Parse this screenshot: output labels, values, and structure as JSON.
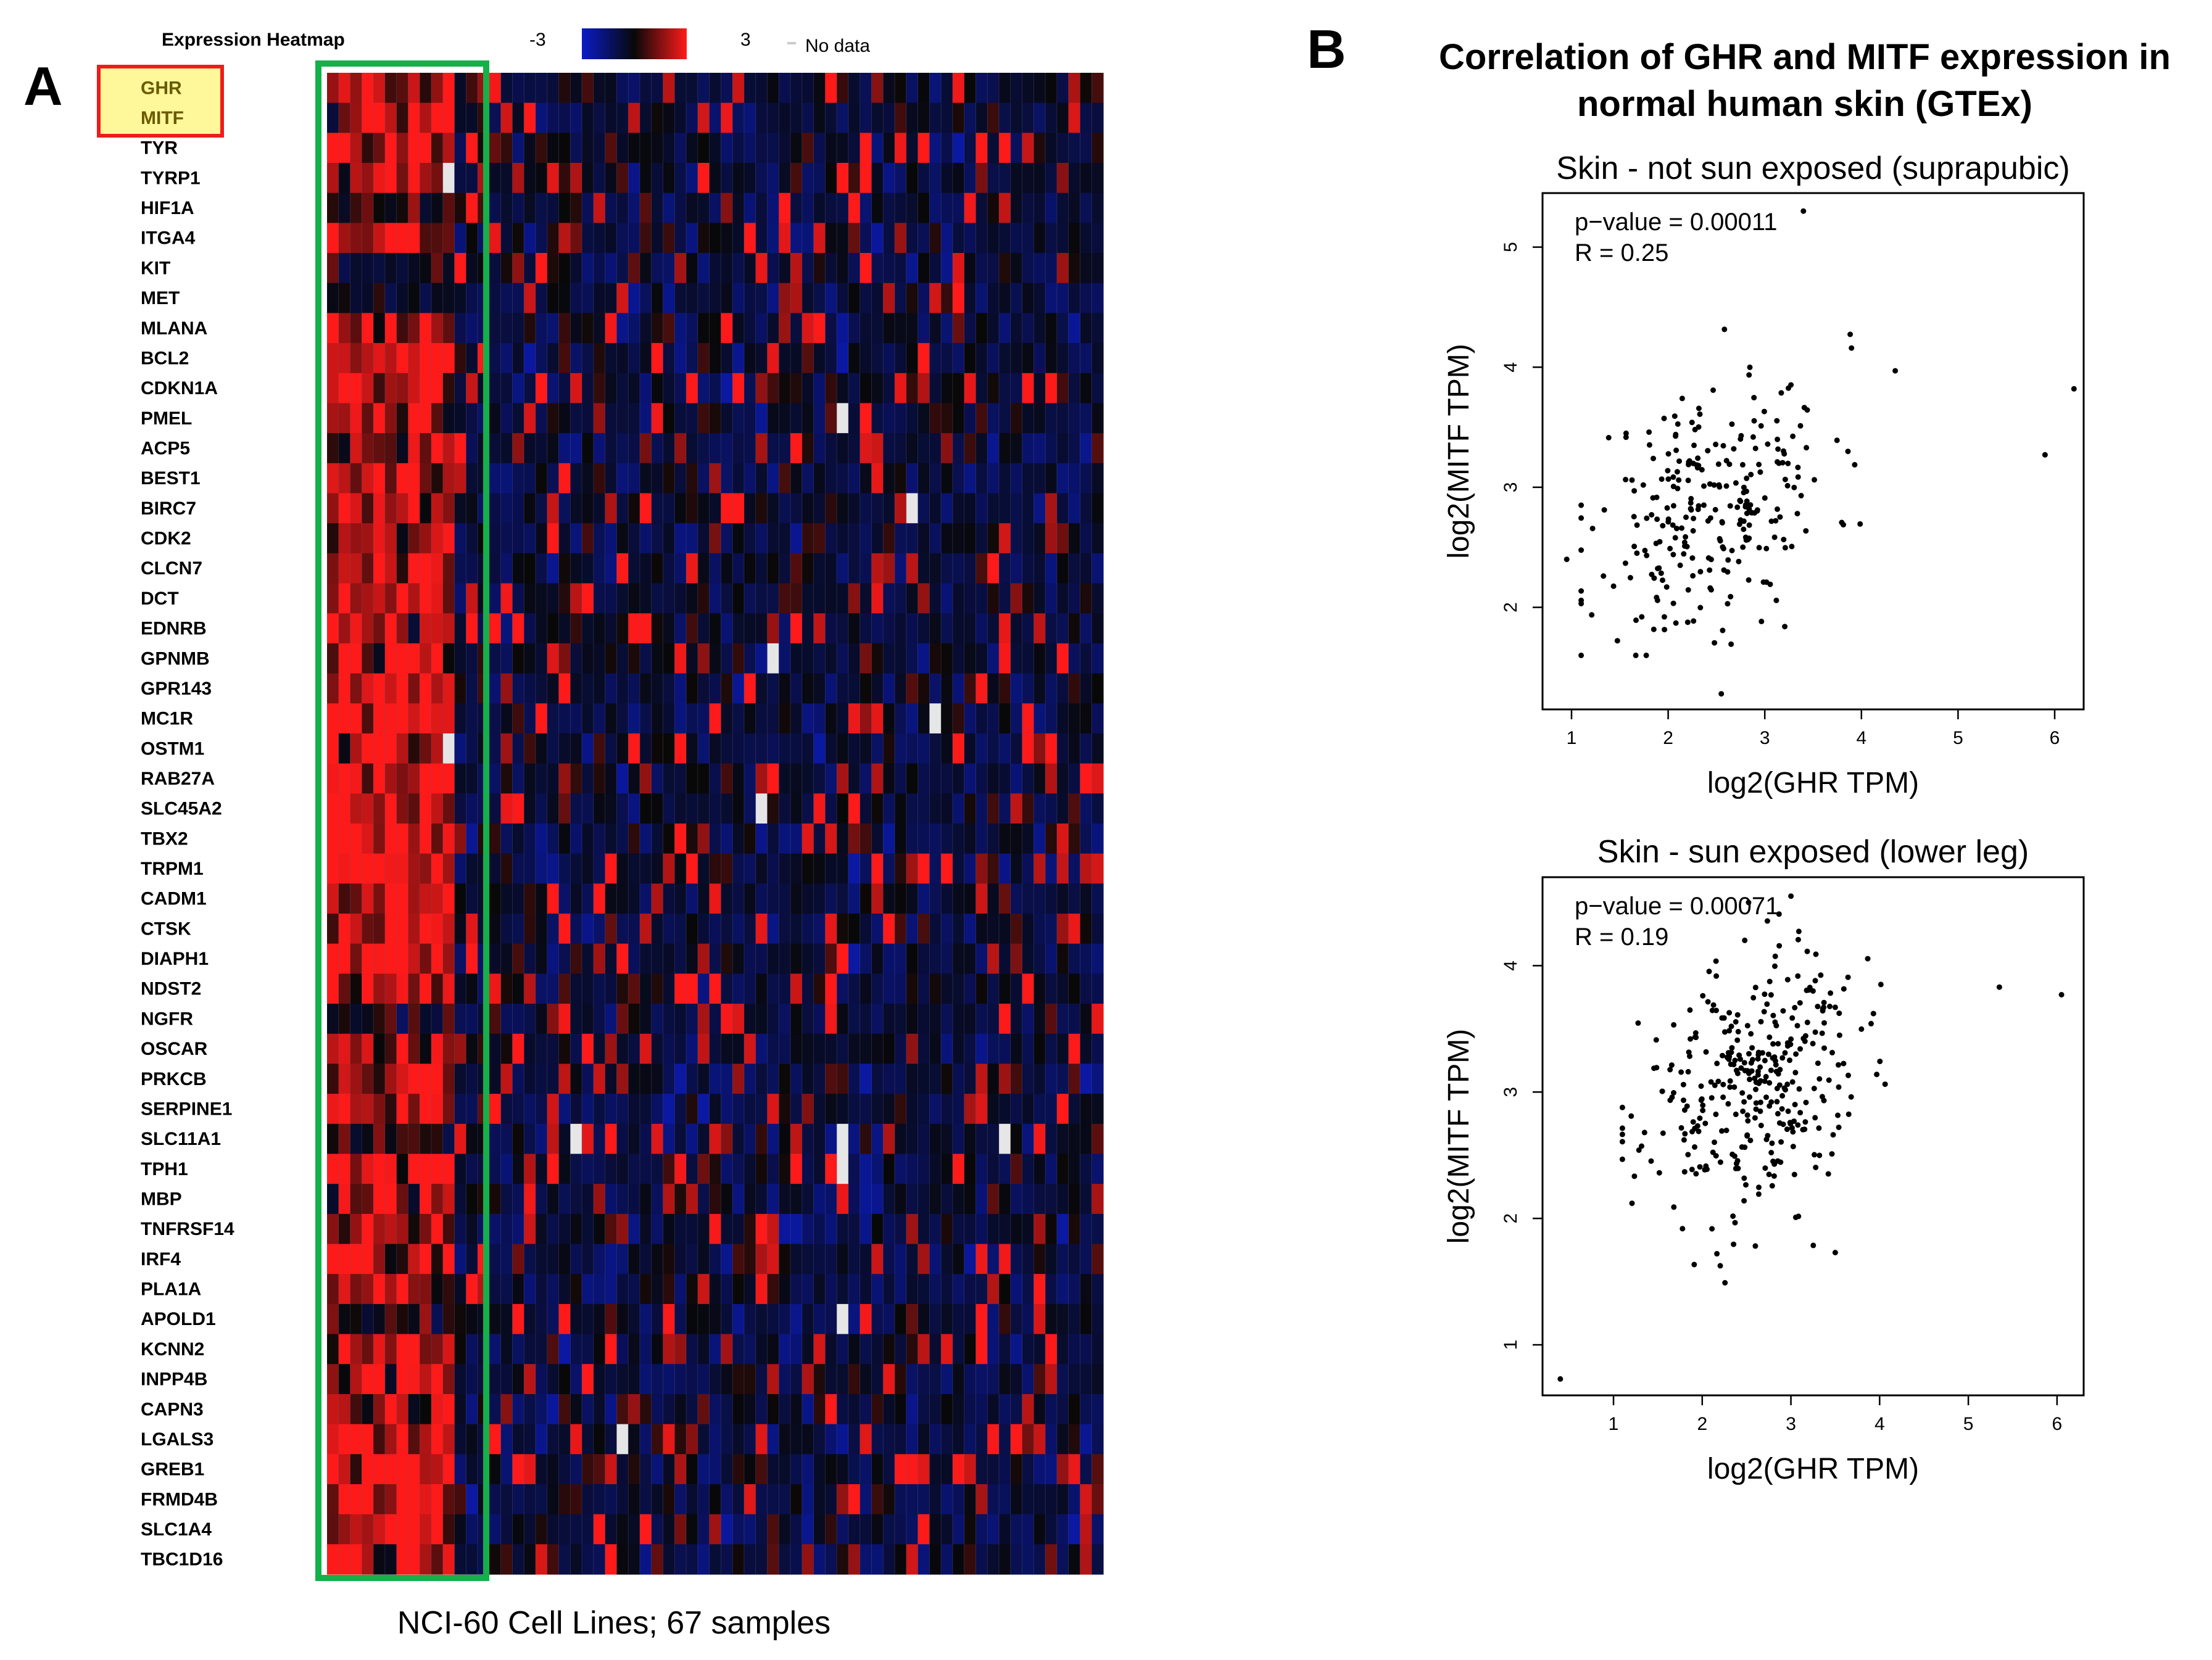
{
  "panels": {
    "a_letter": "A",
    "b_letter": "B"
  },
  "colors": {
    "low": "#0a1cc8",
    "mid": "#080808",
    "high": "#ff1a1a",
    "nodata": "#e6e6e6",
    "highlight_fill": "#fff89a",
    "highlight_box": "#ee1c1c",
    "melanoma_box": "#14b04a"
  },
  "chart_data": [
    {
      "type": "heatmap",
      "title": "Expression Heatmap",
      "legend": {
        "min_label": "-3",
        "max_label": "3",
        "nodata_label": "No data",
        "range": [
          -3,
          3
        ]
      },
      "genes": [
        "GHR",
        "MITF",
        "TYR",
        "TYRP1",
        "HIF1A",
        "ITGA4",
        "KIT",
        "MET",
        "MLANA",
        "BCL2",
        "CDKN1A",
        "PMEL",
        "ACP5",
        "BEST1",
        "BIRC7",
        "CDK2",
        "CLCN7",
        "DCT",
        "EDNRB",
        "GPNMB",
        "GPR143",
        "MC1R",
        "OSTM1",
        "RAB27A",
        "SLC45A2",
        "TBX2",
        "TRPM1",
        "CADM1",
        "CTSK",
        "DIAPH1",
        "NDST2",
        "NGFR",
        "OSCAR",
        "PRKCB",
        "SERPINE1",
        "SLC11A1",
        "TPH1",
        "MBP",
        "TNFRSF14",
        "IRF4",
        "PLA1A",
        "APOLD1",
        "KCNN2",
        "INPP4B",
        "CAPN3",
        "LGALS3",
        "GREB1",
        "FRMD4B",
        "SLC1A4",
        "TBC1D16"
      ],
      "highlighted_genes": [
        "GHR",
        "MITF"
      ],
      "n_samples": 67,
      "melanoma_columns": [
        0,
        10
      ],
      "no_data_cells": [
        [
          3,
          10
        ],
        [
          22,
          10
        ],
        [
          11,
          44
        ],
        [
          14,
          50
        ],
        [
          19,
          38
        ],
        [
          21,
          52
        ],
        [
          24,
          37
        ],
        [
          35,
          21
        ],
        [
          35,
          44
        ],
        [
          35,
          58
        ],
        [
          36,
          44
        ],
        [
          41,
          44
        ],
        [
          45,
          25
        ]
      ],
      "caption": "NCI-60 Cell Lines; 67 samples"
    },
    {
      "type": "scatter",
      "figure_title": "Correlation of GHR and MITF expression in normal human skin (GTEx)",
      "title": "Skin - not sun exposed (suprapubic)",
      "xlabel": "log2(GHR TPM)",
      "ylabel": "log2(MITF TPM)",
      "xlim": [
        0.7,
        6.3
      ],
      "ylim": [
        1.15,
        5.45
      ],
      "xticks": [
        1,
        2,
        3,
        4,
        5,
        6
      ],
      "yticks": [
        2,
        3,
        4,
        5
      ],
      "stats": {
        "p_value": "p−value = 0.00011",
        "r": "R = 0.25"
      },
      "outliers": [
        [
          0.95,
          2.4
        ],
        [
          2.55,
          1.28
        ],
        [
          5.9,
          3.27
        ],
        [
          6.2,
          3.82
        ],
        [
          3.4,
          5.3
        ],
        [
          4.35,
          3.97
        ]
      ],
      "n_points": 260,
      "seed": 11,
      "center": [
        2.45,
        2.85
      ],
      "spread": [
        0.62,
        0.55
      ],
      "rho": 0.3
    },
    {
      "type": "scatter",
      "title": "Skin - sun exposed (lower leg)",
      "xlabel": "log2(GHR TPM)",
      "ylabel": "log2(MITF TPM)",
      "xlim": [
        0.2,
        6.3
      ],
      "ylim": [
        0.6,
        4.7
      ],
      "xticks": [
        1,
        2,
        3,
        4,
        5,
        6
      ],
      "yticks": [
        1,
        2,
        3,
        4
      ],
      "stats": {
        "p_value": "p−value = 0.00071",
        "r": "R = 0.19"
      },
      "outliers": [
        [
          0.4,
          0.73
        ],
        [
          5.35,
          3.83
        ],
        [
          6.05,
          3.77
        ],
        [
          3.5,
          1.73
        ],
        [
          3.0,
          4.55
        ]
      ],
      "n_points": 340,
      "seed": 23,
      "center": [
        2.55,
        3.05
      ],
      "spread": [
        0.6,
        0.52
      ],
      "rho": 0.22
    }
  ]
}
